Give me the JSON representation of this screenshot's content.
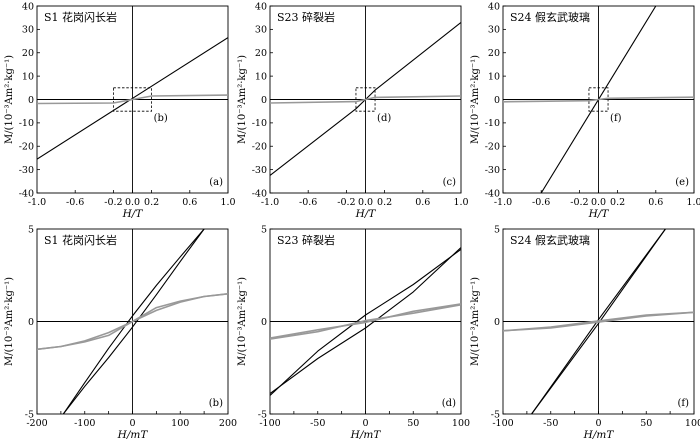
{
  "chart_data": [
    {
      "id": "a",
      "type": "line",
      "panel_label": "(a)",
      "title": "S1 花岗闪长岩",
      "xlabel": "H/T",
      "ylabel": "M/(10⁻³Am²·kg⁻¹)",
      "xlim": [
        -1.0,
        1.0
      ],
      "ylim": [
        -40,
        40
      ],
      "xticks": [
        -1.0,
        -0.6,
        -0.2,
        0.0,
        0.2,
        0.6,
        1.0
      ],
      "xticklabels": [
        "-1.0",
        "-0.6",
        "-0.2",
        "0.0",
        "0.2",
        "0.6",
        "1.0"
      ],
      "yticks": [
        -40,
        -30,
        -20,
        -10,
        0,
        10,
        20,
        30,
        40
      ],
      "yticklabels": [
        "-40",
        "-30",
        "-20",
        "-10",
        "0",
        "10",
        "20",
        "30",
        "40"
      ],
      "inset_label": "(b)",
      "inset_x": [
        -0.2,
        0.2
      ],
      "inset_y": [
        -5,
        5
      ],
      "series": [
        {
          "color": "#000000",
          "x": [
            -1.0,
            1.0
          ],
          "y": [
            -25.5,
            26.5
          ]
        },
        {
          "color": "#999999",
          "x": [
            -1.0,
            -0.2,
            0.0,
            0.2,
            1.0
          ],
          "y": [
            -1.7,
            -1.5,
            0.0,
            1.5,
            1.9
          ]
        }
      ]
    },
    {
      "id": "c",
      "type": "line",
      "panel_label": "(c)",
      "title": "S23 碎裂岩",
      "xlabel": "H/T",
      "ylabel": "M/(10⁻³Am²·kg⁻¹)",
      "xlim": [
        -1.0,
        1.0
      ],
      "ylim": [
        -40,
        40
      ],
      "xticks": [
        -1.0,
        -0.6,
        -0.2,
        0.0,
        0.2,
        0.6,
        1.0
      ],
      "xticklabels": [
        "-1.0",
        "-0.6",
        "-0.2",
        "0.0",
        "0.2",
        "0.6",
        "1.0"
      ],
      "yticks": [
        -40,
        -30,
        -20,
        -10,
        0,
        10,
        20,
        30,
        40
      ],
      "yticklabels": [
        "-40",
        "-30",
        "-20",
        "-10",
        "0",
        "10",
        "20",
        "30",
        "40"
      ],
      "inset_label": "(d)",
      "inset_x": [
        -0.1,
        0.1
      ],
      "inset_y": [
        -5,
        5
      ],
      "series": [
        {
          "color": "#000000",
          "x": [
            -1.0,
            -0.1,
            0.0,
            0.1,
            1.0
          ],
          "y": [
            -32.5,
            -4.0,
            0.0,
            4.0,
            33.0
          ]
        },
        {
          "color": "#999999",
          "x": [
            -1.0,
            -0.1,
            0.0,
            0.1,
            1.0
          ],
          "y": [
            -1.5,
            -0.9,
            0.0,
            0.9,
            1.5
          ]
        }
      ]
    },
    {
      "id": "e",
      "type": "line",
      "panel_label": "(e)",
      "title": "S24 假玄武玻璃",
      "xlabel": "H/T",
      "ylabel": "M/(10⁻³Am²·kg⁻¹)",
      "xlim": [
        -1.0,
        1.0
      ],
      "ylim": [
        -40,
        40
      ],
      "xticks": [
        -1.0,
        -0.6,
        -0.2,
        0.0,
        0.2,
        0.6,
        1.0
      ],
      "xticklabels": [
        "-1.0",
        "-0.6",
        "-0.2",
        "0.0",
        "0.2",
        "0.6",
        "1.0"
      ],
      "yticks": [
        -40,
        -30,
        -20,
        -10,
        0,
        10,
        20,
        30,
        40
      ],
      "yticklabels": [
        "-40",
        "-30",
        "-20",
        "-10",
        "0",
        "10",
        "20",
        "30",
        "40"
      ],
      "inset_label": "(f)",
      "inset_x": [
        -0.1,
        0.1
      ],
      "inset_y": [
        -5,
        5
      ],
      "series": [
        {
          "color": "#000000",
          "x": [
            -0.6,
            0.6
          ],
          "y": [
            -40.0,
            40.0
          ]
        },
        {
          "color": "#999999",
          "x": [
            -1.0,
            -0.1,
            0.0,
            0.1,
            1.0
          ],
          "y": [
            -1.0,
            -0.5,
            0.0,
            0.5,
            1.0
          ]
        }
      ]
    },
    {
      "id": "b",
      "type": "line",
      "panel_label": "(b)",
      "title": "S1 花岗闪长岩",
      "xlabel": "H/mT",
      "ylabel": "M/(10⁻³Am²·kg⁻¹)",
      "xlim": [
        -200,
        200
      ],
      "ylim": [
        -5,
        5
      ],
      "xticks": [
        -200,
        -150,
        -100,
        -50,
        0,
        50,
        100,
        150,
        200
      ],
      "xticklabels": [
        "-200",
        "-100",
        "0",
        "100",
        "200"
      ],
      "yticks": [
        -5,
        0,
        5
      ],
      "yticklabels": [
        "-5",
        "0",
        "5"
      ],
      "series": [
        {
          "color": "#000000",
          "x": [
            -145,
            -100,
            -50,
            0,
            50,
            100,
            150
          ],
          "y": [
            -5.0,
            -3.5,
            -1.95,
            -0.3,
            1.45,
            3.25,
            5.0
          ]
        },
        {
          "color": "#000000",
          "x": [
            -145,
            -100,
            -50,
            0,
            50,
            100,
            150
          ],
          "y": [
            -5.0,
            -3.3,
            -1.45,
            0.3,
            1.95,
            3.5,
            5.0
          ]
        },
        {
          "color": "#999999",
          "x": [
            -200,
            -150,
            -100,
            -50,
            0,
            50,
            100,
            150,
            200
          ],
          "y": [
            -1.5,
            -1.35,
            -1.05,
            -0.6,
            0.0,
            0.75,
            1.1,
            1.35,
            1.5
          ]
        },
        {
          "color": "#999999",
          "x": [
            -200,
            -150,
            -100,
            -50,
            0,
            50,
            100,
            150,
            200
          ],
          "y": [
            -1.5,
            -1.35,
            -1.1,
            -0.75,
            0.0,
            0.6,
            1.05,
            1.35,
            1.5
          ]
        }
      ]
    },
    {
      "id": "d",
      "type": "line",
      "panel_label": "(d)",
      "title": "S23 碎裂岩",
      "xlabel": "H/mT",
      "ylabel": "M/(10⁻³Am²·kg⁻¹)",
      "xlim": [
        -100,
        100
      ],
      "ylim": [
        -5,
        5
      ],
      "xticks": [
        -100,
        -75,
        -50,
        -25,
        0,
        25,
        50,
        75,
        100
      ],
      "xticklabels": [
        "-100",
        "-50",
        "0",
        "50",
        "100"
      ],
      "yticks": [
        -5,
        0,
        5
      ],
      "yticklabels": [
        "-5",
        "0",
        "5"
      ],
      "series": [
        {
          "color": "#000000",
          "x": [
            -100,
            -50,
            0,
            50,
            100
          ],
          "y": [
            -3.9,
            -2.0,
            -0.35,
            1.6,
            4.0
          ]
        },
        {
          "color": "#000000",
          "x": [
            -100,
            -50,
            0,
            50,
            100
          ],
          "y": [
            -4.0,
            -1.6,
            0.35,
            2.0,
            3.9
          ]
        },
        {
          "color": "#999999",
          "x": [
            -100,
            -50,
            0,
            50,
            100
          ],
          "y": [
            -0.9,
            -0.45,
            -0.05,
            0.55,
            0.95
          ]
        },
        {
          "color": "#999999",
          "x": [
            -100,
            -50,
            0,
            50,
            100
          ],
          "y": [
            -0.95,
            -0.55,
            0.05,
            0.45,
            0.9
          ]
        }
      ]
    },
    {
      "id": "f",
      "type": "line",
      "panel_label": "(f)",
      "title": "S24 假玄武玻璃",
      "xlabel": "H/mT",
      "ylabel": "M/(10⁻³Am²·kg⁻¹)",
      "xlim": [
        -100,
        100
      ],
      "ylim": [
        -5,
        5
      ],
      "xticks": [
        -100,
        -75,
        -50,
        -25,
        0,
        25,
        50,
        75,
        100
      ],
      "xticklabels": [
        "-100",
        "-50",
        "0",
        "50",
        "100"
      ],
      "yticks": [
        -5,
        0,
        5
      ],
      "yticklabels": [
        "-5",
        "0",
        "5"
      ],
      "series": [
        {
          "color": "#000000",
          "x": [
            -70,
            0,
            70
          ],
          "y": [
            -5.0,
            -0.1,
            5.0
          ]
        },
        {
          "color": "#000000",
          "x": [
            -70,
            0,
            70
          ],
          "y": [
            -5.0,
            0.1,
            5.0
          ]
        },
        {
          "color": "#999999",
          "x": [
            -100,
            -50,
            0,
            50,
            100
          ],
          "y": [
            -0.5,
            -0.35,
            -0.03,
            0.3,
            0.5
          ]
        },
        {
          "color": "#999999",
          "x": [
            -100,
            -50,
            0,
            50,
            100
          ],
          "y": [
            -0.5,
            -0.3,
            0.03,
            0.35,
            0.5
          ]
        }
      ]
    }
  ]
}
